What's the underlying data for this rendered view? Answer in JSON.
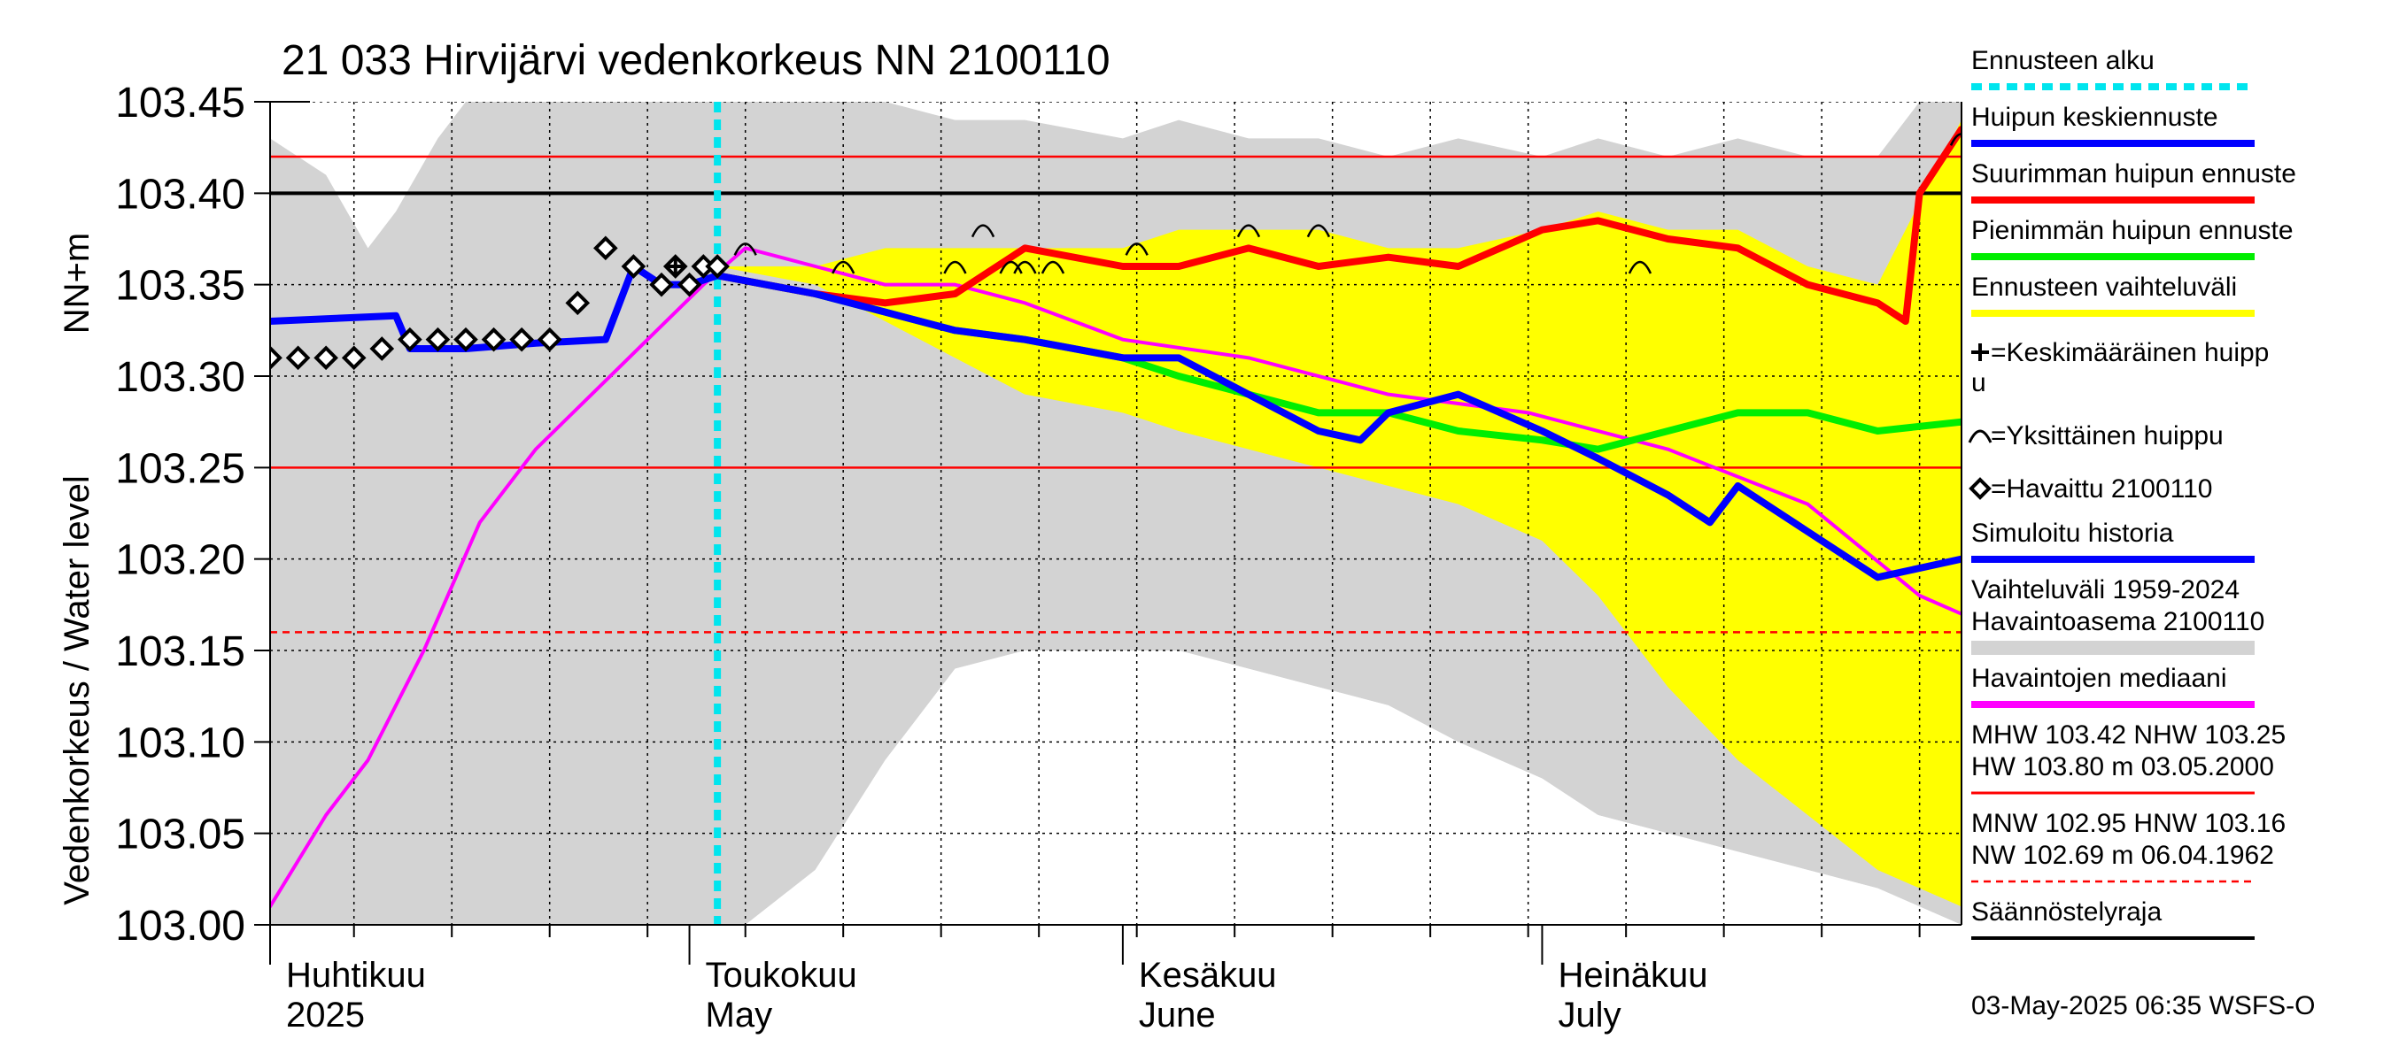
{
  "chart_data": {
    "type": "line",
    "title": "21 033 Hirvijärvi vedenkorkeus NN 2100110",
    "ylabel_top": "NN+m",
    "ylabel": "Vedenkorkeus / Water level",
    "ylim": [
      103.0,
      103.45
    ],
    "yticks": [
      "103.00",
      "103.05",
      "103.10",
      "103.15",
      "103.20",
      "103.25",
      "103.30",
      "103.35",
      "103.40",
      "103.45"
    ],
    "x_range_dates": [
      "2025-04-01",
      "2025-07-31"
    ],
    "grid": true,
    "legend_placement": "right",
    "months": [
      {
        "fi": "Huhtikuu",
        "en": "2025",
        "date": "2025-04-01"
      },
      {
        "fi": "Toukokuu",
        "en": "May",
        "date": "2025-05-01"
      },
      {
        "fi": "Kesäkuu",
        "en": "June",
        "date": "2025-06-01"
      },
      {
        "fi": "Heinäkuu",
        "en": "July",
        "date": "2025-07-01"
      }
    ],
    "reference_lines": [
      {
        "name": "MHW",
        "value": 103.42,
        "color": "#ff0000",
        "style": "solid"
      },
      {
        "name": "NHW",
        "value": 103.25,
        "color": "#ff0000",
        "style": "solid"
      },
      {
        "name": "HNW",
        "value": 103.16,
        "color": "#ff0000",
        "style": "dashed"
      },
      {
        "name": "Säännöstelyraja",
        "value": 103.4,
        "color": "#000000",
        "style": "solid"
      }
    ],
    "forecast_start": "2025-05-03",
    "series": [
      {
        "name": "Vaihteluväli 1959-2024",
        "kind": "band",
        "color": "#d3d3d3",
        "dates": [
          "2025-04-01",
          "2025-04-05",
          "2025-04-08",
          "2025-04-10",
          "2025-04-13",
          "2025-04-15",
          "2025-04-20",
          "2025-05-01",
          "2025-05-05",
          "2025-05-10",
          "2025-05-15",
          "2025-05-20",
          "2025-05-25",
          "2025-06-01",
          "2025-06-05",
          "2025-06-10",
          "2025-06-15",
          "2025-06-20",
          "2025-06-25",
          "2025-07-01",
          "2025-07-05",
          "2025-07-10",
          "2025-07-15",
          "2025-07-20",
          "2025-07-25",
          "2025-07-28",
          "2025-07-31"
        ],
        "upper": [
          103.43,
          103.41,
          103.37,
          103.39,
          103.43,
          103.45,
          103.45,
          103.45,
          103.45,
          103.45,
          103.45,
          103.44,
          103.44,
          103.43,
          103.44,
          103.43,
          103.43,
          103.42,
          103.43,
          103.42,
          103.43,
          103.42,
          103.43,
          103.42,
          103.42,
          103.45,
          103.45
        ],
        "lower": [
          103.34,
          103.33,
          103.31,
          103.31,
          103.32,
          103.32,
          103.34,
          103.35,
          103.34,
          103.33,
          103.32,
          103.31,
          103.3,
          103.29,
          103.28,
          103.27,
          103.25,
          103.23,
          103.22,
          103.21,
          103.2,
          103.19,
          103.18,
          103.16,
          103.14,
          103.11,
          103.09
        ],
        "lower_inner": [
          103.0,
          103.0,
          103.0,
          103.0,
          103.0,
          103.0,
          103.0,
          103.0,
          103.0,
          103.03,
          103.09,
          103.14,
          103.15,
          103.15,
          103.15,
          103.14,
          103.13,
          103.12,
          103.1,
          103.08,
          103.06,
          103.05,
          103.04,
          103.03,
          103.02,
          103.01,
          103.0
        ]
      },
      {
        "name": "Ennusteen vaihteluväli",
        "kind": "band",
        "color": "#ffff00",
        "dates": [
          "2025-05-03",
          "2025-05-10",
          "2025-05-15",
          "2025-05-20",
          "2025-05-25",
          "2025-06-01",
          "2025-06-05",
          "2025-06-10",
          "2025-06-15",
          "2025-06-20",
          "2025-06-25",
          "2025-07-01",
          "2025-07-05",
          "2025-07-10",
          "2025-07-15",
          "2025-07-20",
          "2025-07-25",
          "2025-07-31"
        ],
        "upper": [
          103.36,
          103.36,
          103.37,
          103.37,
          103.37,
          103.37,
          103.38,
          103.38,
          103.38,
          103.37,
          103.37,
          103.38,
          103.39,
          103.38,
          103.38,
          103.36,
          103.35,
          103.44
        ],
        "lower": [
          103.36,
          103.35,
          103.33,
          103.31,
          103.29,
          103.28,
          103.27,
          103.26,
          103.25,
          103.24,
          103.23,
          103.21,
          103.18,
          103.13,
          103.09,
          103.06,
          103.03,
          103.01
        ]
      },
      {
        "name": "Simuloitu historia",
        "color": "#0000ff",
        "dates": [
          "2025-04-01",
          "2025-04-10",
          "2025-04-11",
          "2025-04-15",
          "2025-04-20",
          "2025-04-25",
          "2025-04-27",
          "2025-04-29",
          "2025-05-01",
          "2025-05-03"
        ],
        "values": [
          103.33,
          103.333,
          103.315,
          103.315,
          103.318,
          103.32,
          103.36,
          103.35,
          103.35,
          103.355
        ]
      },
      {
        "name": "Havaittu 2100110",
        "kind": "markers",
        "color": "#000000",
        "dates": [
          "2025-04-01",
          "2025-04-03",
          "2025-04-05",
          "2025-04-07",
          "2025-04-09",
          "2025-04-11",
          "2025-04-13",
          "2025-04-15",
          "2025-04-17",
          "2025-04-19",
          "2025-04-21",
          "2025-04-23",
          "2025-04-25",
          "2025-04-27",
          "2025-04-29",
          "2025-04-30",
          "2025-05-01",
          "2025-05-02",
          "2025-05-03"
        ],
        "values": [
          103.31,
          103.31,
          103.31,
          103.31,
          103.315,
          103.32,
          103.32,
          103.32,
          103.32,
          103.32,
          103.32,
          103.34,
          103.37,
          103.36,
          103.35,
          103.36,
          103.35,
          103.36,
          103.36
        ]
      },
      {
        "name": "Havaintojen mediaani",
        "color": "#ff00ff",
        "dates": [
          "2025-04-01",
          "2025-04-05",
          "2025-04-08",
          "2025-04-12",
          "2025-04-16",
          "2025-04-20",
          "2025-04-24",
          "2025-04-28",
          "2025-05-02",
          "2025-05-05",
          "2025-05-10",
          "2025-05-15",
          "2025-05-20",
          "2025-05-25",
          "2025-06-01",
          "2025-06-10",
          "2025-06-20",
          "2025-06-30",
          "2025-07-10",
          "2025-07-20",
          "2025-07-28",
          "2025-07-31"
        ],
        "values": [
          103.01,
          103.06,
          103.09,
          103.15,
          103.22,
          103.26,
          103.29,
          103.32,
          103.35,
          103.37,
          103.36,
          103.35,
          103.35,
          103.34,
          103.32,
          103.31,
          103.29,
          103.28,
          103.26,
          103.23,
          103.18,
          103.17
        ]
      },
      {
        "name": "Pienimmän huipun ennuste",
        "color": "#00ee00",
        "dates": [
          "2025-05-03",
          "2025-05-10",
          "2025-05-15",
          "2025-05-20",
          "2025-05-25",
          "2025-06-01",
          "2025-06-05",
          "2025-06-10",
          "2025-06-15",
          "2025-06-20",
          "2025-06-25",
          "2025-07-01",
          "2025-07-05",
          "2025-07-10",
          "2025-07-15",
          "2025-07-20",
          "2025-07-25",
          "2025-07-31"
        ],
        "values": [
          103.355,
          103.345,
          103.335,
          103.325,
          103.32,
          103.31,
          103.3,
          103.29,
          103.28,
          103.28,
          103.27,
          103.265,
          103.26,
          103.27,
          103.28,
          103.28,
          103.27,
          103.275
        ]
      },
      {
        "name": "Huipun keskiennuste",
        "color": "#0000ff",
        "dates": [
          "2025-05-03",
          "2025-05-10",
          "2025-05-15",
          "2025-05-20",
          "2025-05-25",
          "2025-06-01",
          "2025-06-05",
          "2025-06-10",
          "2025-06-15",
          "2025-06-18",
          "2025-06-20",
          "2025-06-25",
          "2025-07-01",
          "2025-07-05",
          "2025-07-10",
          "2025-07-13",
          "2025-07-15",
          "2025-07-20",
          "2025-07-25",
          "2025-07-31"
        ],
        "values": [
          103.355,
          103.345,
          103.335,
          103.325,
          103.32,
          103.31,
          103.31,
          103.29,
          103.27,
          103.265,
          103.28,
          103.29,
          103.27,
          103.255,
          103.235,
          103.22,
          103.24,
          103.215,
          103.19,
          103.2
        ]
      },
      {
        "name": "Suurimman huipun ennuste",
        "color": "#ff0000",
        "dates": [
          "2025-05-03",
          "2025-05-10",
          "2025-05-15",
          "2025-05-20",
          "2025-05-25",
          "2025-06-01",
          "2025-06-05",
          "2025-06-10",
          "2025-06-15",
          "2025-06-20",
          "2025-06-25",
          "2025-07-01",
          "2025-07-05",
          "2025-07-10",
          "2025-07-15",
          "2025-07-20",
          "2025-07-25",
          "2025-07-27",
          "2025-07-28",
          "2025-07-31"
        ],
        "values": [
          103.355,
          103.345,
          103.34,
          103.345,
          103.37,
          103.36,
          103.36,
          103.37,
          103.36,
          103.365,
          103.36,
          103.38,
          103.385,
          103.375,
          103.37,
          103.35,
          103.34,
          103.33,
          103.4,
          103.435
        ]
      }
    ],
    "average_peak": {
      "name": "Keskimääräinen huippu",
      "date": "2025-04-30",
      "value": 103.36
    },
    "individual_peaks": {
      "name": "Yksittäinen huippu",
      "dates": [
        "2025-05-05",
        "2025-05-12",
        "2025-05-20",
        "2025-05-22",
        "2025-05-24",
        "2025-05-25",
        "2025-05-27",
        "2025-06-02",
        "2025-06-10",
        "2025-06-15",
        "2025-07-08",
        "2025-07-31"
      ],
      "values": [
        103.37,
        103.36,
        103.36,
        103.38,
        103.36,
        103.36,
        103.36,
        103.37,
        103.38,
        103.38,
        103.36,
        103.43
      ]
    }
  },
  "legend": {
    "items": [
      {
        "label": "Ennusteen alku",
        "color": "#00e5ee",
        "style": "dotted"
      },
      {
        "label": "Huipun keskiennuste",
        "color": "#0000ff",
        "style": "solid"
      },
      {
        "label": "Suurimman huipun ennuste",
        "color": "#ff0000",
        "style": "solid"
      },
      {
        "label": "Pienimmän huipun ennuste",
        "color": "#00ee00",
        "style": "solid"
      },
      {
        "label": "Ennusteen vaihteluväli",
        "color": "#ffff00",
        "style": "solid"
      },
      {
        "label": "=Keskimääräinen huipp",
        "label2": "u",
        "symbol": "plus"
      },
      {
        "label": "=Yksittäinen huippu",
        "symbol": "arc"
      },
      {
        "label": "=Havaittu 2100110",
        "symbol": "diamond"
      },
      {
        "label": "Simuloitu historia",
        "color": "#0000ff",
        "style": "solid"
      },
      {
        "label": "Vaihteluväli 1959-2024",
        "label2": " Havaintoasema 2100110",
        "color": "#d3d3d3",
        "style": "band"
      },
      {
        "label": "Havaintojen mediaani",
        "color": "#ff00ff",
        "style": "solid"
      },
      {
        "label": "MHW 103.42 NHW 103.25",
        "label2": "HW 103.80 m 03.05.2000",
        "color": "#ff0000",
        "style": "solid"
      },
      {
        "label": "MNW 102.95 HNW 103.16",
        "label2": "NW 102.69 m 06.04.1962",
        "color": "#ff0000",
        "style": "dashed"
      },
      {
        "label": "Säännöstelyraja",
        "color": "#000000",
        "style": "solid"
      }
    ]
  },
  "footer": "03-May-2025 06:35 WSFS-O"
}
